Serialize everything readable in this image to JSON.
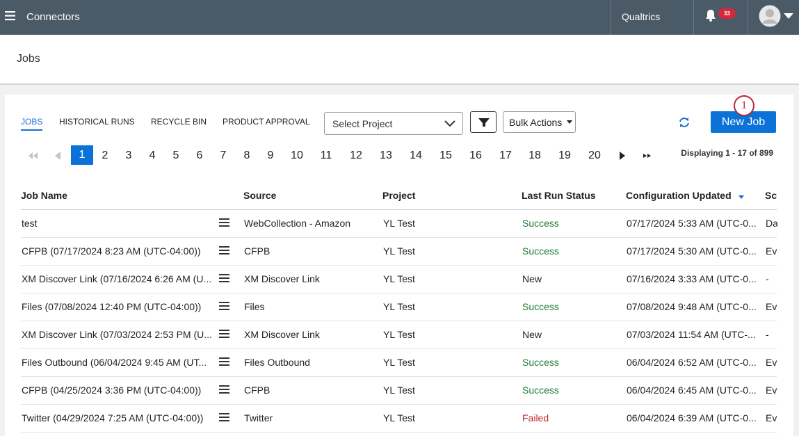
{
  "topbar": {
    "app": "Connectors",
    "brand": "Qualtrics",
    "notifications": "33"
  },
  "page_title": "Jobs",
  "tabs": [
    "JOBS",
    "HISTORICAL RUNS",
    "RECYCLE BIN",
    "PRODUCT APPROVAL"
  ],
  "project_select": "Select Project",
  "bulk_actions": "Bulk Actions",
  "new_job": "New Job",
  "callout": "1",
  "pagination": {
    "pages": [
      "1",
      "2",
      "3",
      "4",
      "5",
      "6",
      "7",
      "8",
      "9",
      "10",
      "11",
      "12",
      "13",
      "14",
      "15",
      "16",
      "17",
      "18",
      "19",
      "20"
    ],
    "display": "Displaying 1 - 17 of 899"
  },
  "table": {
    "columns": [
      "Job Name",
      "Source",
      "Project",
      "Last Run Status",
      "Configuration Updated",
      "Sc"
    ],
    "rows": [
      {
        "job_name": "test",
        "source": "WebCollection - Amazon",
        "project": "YL Test",
        "status": "Success",
        "status_color": "#1e7b34",
        "updated": "07/17/2024 5:33 AM (UTC-0...",
        "sc": "Da"
      },
      {
        "job_name": "CFPB (07/17/2024 8:23 AM (UTC-04:00))",
        "source": "CFPB",
        "project": "YL Test",
        "status": "Success",
        "status_color": "#1e7b34",
        "updated": "07/17/2024 5:30 AM (UTC-0...",
        "sc": "Ev"
      },
      {
        "job_name": "XM Discover Link (07/16/2024 6:26 AM (U...",
        "source": "XM Discover Link",
        "project": "YL Test",
        "status": "New",
        "status_color": "#222222",
        "updated": "07/16/2024 3:33 AM (UTC-0...",
        "sc": "-"
      },
      {
        "job_name": "Files (07/08/2024 12:40 PM (UTC-04:00))",
        "source": "Files",
        "project": "YL Test",
        "status": "Success",
        "status_color": "#1e7b34",
        "updated": "07/08/2024 9:48 AM (UTC-0...",
        "sc": "Ev"
      },
      {
        "job_name": "XM Discover Link (07/03/2024 2:53 PM (U...",
        "source": "XM Discover Link",
        "project": "YL Test",
        "status": "New",
        "status_color": "#222222",
        "updated": "07/03/2024 11:54 AM (UTC-...",
        "sc": "-"
      },
      {
        "job_name": "Files Outbound (06/04/2024 9:45 AM (UT...",
        "source": "Files Outbound",
        "project": "YL Test",
        "status": "Success",
        "status_color": "#1e7b34",
        "updated": "06/04/2024 6:52 AM (UTC-0...",
        "sc": "Ev"
      },
      {
        "job_name": "CFPB (04/25/2024 3:36 PM (UTC-04:00))",
        "source": "CFPB",
        "project": "YL Test",
        "status": "Success",
        "status_color": "#1e7b34",
        "updated": "06/04/2024 6:45 AM (UTC-0...",
        "sc": "Ev"
      },
      {
        "job_name": "Twitter (04/29/2024 7:25 AM (UTC-04:00))",
        "source": "Twitter",
        "project": "YL Test",
        "status": "Failed",
        "status_color": "#c62828",
        "updated": "06/04/2024 6:39 AM (UTC-0...",
        "sc": "Ev"
      }
    ]
  }
}
